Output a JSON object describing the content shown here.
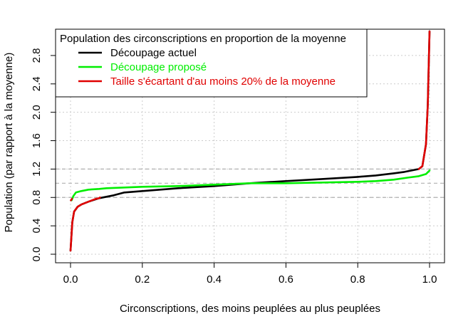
{
  "chart_data": {
    "type": "line",
    "title": "",
    "xlabel": "Circonscriptions, des moins peuplées au plus peuplées",
    "ylabel": "Population (par rapport à la moyenne)",
    "xlim": [
      0,
      1
    ],
    "ylim": [
      0,
      3.0
    ],
    "xticks": [
      0.0,
      0.2,
      0.4,
      0.6,
      0.8,
      1.0
    ],
    "xtick_labels": [
      "0.0",
      "0.2",
      "0.4",
      "0.6",
      "0.8",
      "1.0"
    ],
    "yticks": [
      0.0,
      0.4,
      0.8,
      1.2,
      1.6,
      2.0,
      2.4,
      2.8
    ],
    "ytick_labels": [
      "0.0",
      "0.4",
      "0.8",
      "1.2",
      "1.6",
      "2.0",
      "2.4",
      "2.8"
    ],
    "grid": true,
    "reference_lines": [
      0.8,
      1.0,
      1.2
    ],
    "legend": {
      "title": "Population des circonscriptions en proportion de la moyenne",
      "position": "top-left"
    },
    "series": [
      {
        "name": "Découpage actuel",
        "color": "#000000",
        "x": [
          0.0,
          0.005,
          0.01,
          0.02,
          0.03,
          0.05,
          0.08,
          0.1,
          0.12,
          0.15,
          0.2,
          0.25,
          0.3,
          0.4,
          0.5,
          0.6,
          0.7,
          0.8,
          0.85,
          0.9,
          0.93,
          0.95,
          0.97,
          0.98,
          0.99,
          0.995,
          1.0
        ],
        "y": [
          0.05,
          0.45,
          0.6,
          0.67,
          0.7,
          0.74,
          0.79,
          0.81,
          0.83,
          0.87,
          0.89,
          0.91,
          0.93,
          0.96,
          1.0,
          1.03,
          1.06,
          1.09,
          1.11,
          1.14,
          1.16,
          1.18,
          1.2,
          1.24,
          1.55,
          2.1,
          3.14
        ]
      },
      {
        "name": "Découpage proposé",
        "color": "#00ee00",
        "x": [
          0.003,
          0.008,
          0.015,
          0.03,
          0.05,
          0.08,
          0.1,
          0.15,
          0.2,
          0.3,
          0.4,
          0.5,
          0.6,
          0.7,
          0.8,
          0.85,
          0.9,
          0.94,
          0.97,
          0.99,
          1.0
        ],
        "y": [
          0.76,
          0.82,
          0.87,
          0.89,
          0.91,
          0.92,
          0.93,
          0.94,
          0.95,
          0.96,
          0.98,
          1.0,
          1.0,
          1.01,
          1.02,
          1.03,
          1.05,
          1.08,
          1.1,
          1.13,
          1.18
        ]
      },
      {
        "name": "Taille s'écartant d'au moins 20% de la moyenne",
        "color": "#e00000",
        "x": [
          0.0,
          0.005,
          0.01,
          0.02,
          0.03,
          0.05,
          0.07,
          0.08,
          0.082
        ],
        "y": [
          0.05,
          0.45,
          0.6,
          0.67,
          0.7,
          0.74,
          0.78,
          0.79,
          0.8
        ]
      },
      {
        "name": "",
        "color": "#e00000",
        "x": [
          0.97,
          0.98,
          0.99,
          0.995,
          1.0
        ],
        "y": [
          1.2,
          1.24,
          1.55,
          2.1,
          3.14
        ]
      },
      {
        "name": "",
        "color": "#e00000",
        "x": [
          0.001,
          0.004
        ],
        "y": [
          0.76,
          0.78
        ]
      }
    ]
  }
}
